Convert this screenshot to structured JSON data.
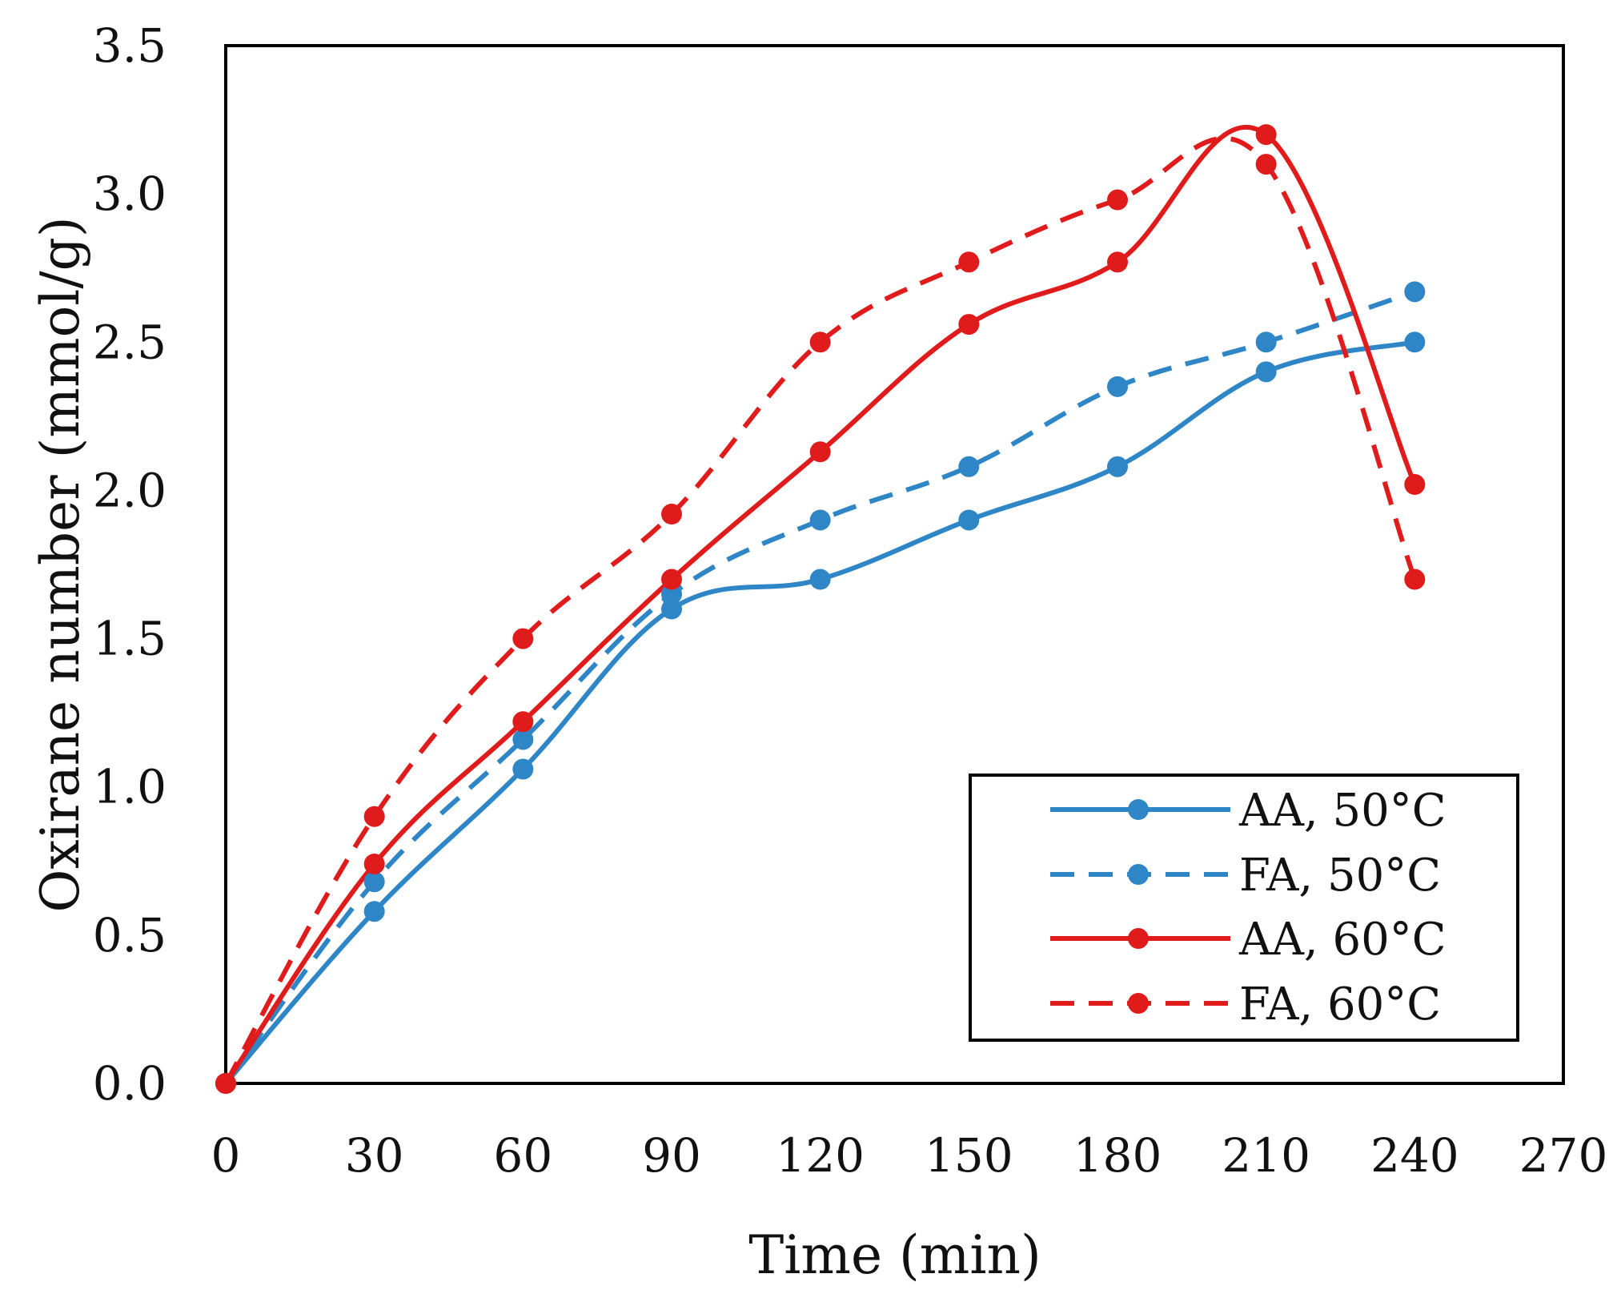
{
  "chart_data": {
    "type": "line",
    "title": "",
    "xlabel": "Time (min)",
    "ylabel": "Oxirane number (mmol/g)",
    "xlim": [
      0,
      270
    ],
    "ylim": [
      0,
      3.5
    ],
    "xticks": [
      0,
      30,
      60,
      90,
      120,
      150,
      180,
      210,
      240,
      270
    ],
    "yticks": [
      0.0,
      0.5,
      1.0,
      1.5,
      2.0,
      2.5,
      3.0,
      3.5
    ],
    "xtick_labels": [
      "0",
      "30",
      "60",
      "90",
      "120",
      "150",
      "180",
      "210",
      "240",
      "270"
    ],
    "ytick_labels": [
      "0.0",
      "0.5",
      "1.0",
      "1.5",
      "2.0",
      "2.5",
      "3.0",
      "3.5"
    ],
    "grid": false,
    "legend_position": "bottom-right",
    "series": [
      {
        "name": "AA, 50°C",
        "color": "#2f86c6",
        "dash": "solid",
        "x": [
          0,
          30,
          60,
          90,
          120,
          150,
          180,
          210,
          240
        ],
        "y": [
          0.0,
          0.58,
          1.06,
          1.6,
          1.7,
          1.9,
          2.08,
          2.4,
          2.5
        ]
      },
      {
        "name": "FA, 50°C",
        "color": "#2f86c6",
        "dash": "dashed",
        "x": [
          0,
          30,
          60,
          90,
          120,
          150,
          180,
          210,
          240
        ],
        "y": [
          0.0,
          0.68,
          1.16,
          1.65,
          1.9,
          2.08,
          2.35,
          2.5,
          2.67
        ]
      },
      {
        "name": "AA, 60°C",
        "color": "#e01b1b",
        "dash": "solid",
        "x": [
          0,
          30,
          60,
          90,
          120,
          150,
          180,
          210,
          240
        ],
        "y": [
          0.0,
          0.74,
          1.22,
          1.7,
          2.13,
          2.56,
          2.77,
          3.2,
          2.02
        ]
      },
      {
        "name": "FA, 60°C",
        "color": "#e01b1b",
        "dash": "dashed",
        "x": [
          0,
          30,
          60,
          90,
          120,
          150,
          180,
          210,
          240
        ],
        "y": [
          0.0,
          0.9,
          1.5,
          1.92,
          2.5,
          2.77,
          2.98,
          3.1,
          1.7
        ]
      }
    ]
  }
}
